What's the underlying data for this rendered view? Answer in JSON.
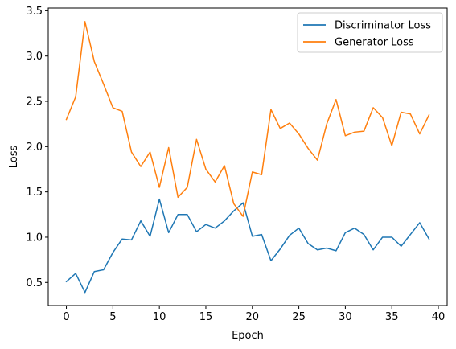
{
  "chart_data": {
    "type": "line",
    "title": "",
    "xlabel": "Epoch",
    "ylabel": "Loss",
    "xlim": [
      -1.95,
      40.95
    ],
    "ylim": [
      0.245,
      3.53
    ],
    "xticks": [
      0,
      5,
      10,
      15,
      20,
      25,
      30,
      35,
      40
    ],
    "xtick_labels": [
      "0",
      "5",
      "10",
      "15",
      "20",
      "25",
      "30",
      "35",
      "40"
    ],
    "yticks": [
      0.5,
      1.0,
      1.5,
      2.0,
      2.5,
      3.0,
      3.5
    ],
    "ytick_labels": [
      "0.5",
      "1.0",
      "1.5",
      "2.0",
      "2.5",
      "3.0",
      "3.5"
    ],
    "grid": false,
    "legend_position": "top-right",
    "x": [
      0,
      1,
      2,
      3,
      4,
      5,
      6,
      7,
      8,
      9,
      10,
      11,
      12,
      13,
      14,
      15,
      16,
      17,
      18,
      19,
      20,
      21,
      22,
      23,
      24,
      25,
      26,
      27,
      28,
      29,
      30,
      31,
      32,
      33,
      34,
      35,
      36,
      37,
      38,
      39
    ],
    "series": [
      {
        "name": "Discriminator Loss",
        "color": "#1f77b4",
        "values": [
          0.51,
          0.6,
          0.39,
          0.62,
          0.64,
          0.83,
          0.98,
          0.97,
          1.18,
          1.01,
          1.42,
          1.05,
          1.25,
          1.25,
          1.06,
          1.14,
          1.1,
          1.18,
          1.29,
          1.38,
          1.01,
          1.03,
          0.74,
          0.87,
          1.02,
          1.1,
          0.93,
          0.86,
          0.88,
          0.85,
          1.05,
          1.1,
          1.03,
          0.86,
          1.0,
          1.0,
          0.9,
          1.03,
          1.16,
          0.98
        ]
      },
      {
        "name": "Generator Loss",
        "color": "#ff7f0e",
        "values": [
          2.3,
          2.55,
          3.38,
          2.94,
          2.69,
          2.43,
          2.39,
          1.94,
          1.78,
          1.94,
          1.55,
          1.99,
          1.44,
          1.55,
          2.08,
          1.75,
          1.61,
          1.79,
          1.37,
          1.23,
          1.72,
          1.69,
          2.41,
          2.2,
          2.26,
          2.14,
          1.98,
          1.85,
          2.25,
          2.52,
          2.12,
          2.16,
          2.17,
          2.43,
          2.32,
          2.01,
          2.38,
          2.36,
          2.14,
          2.35
        ]
      }
    ]
  }
}
